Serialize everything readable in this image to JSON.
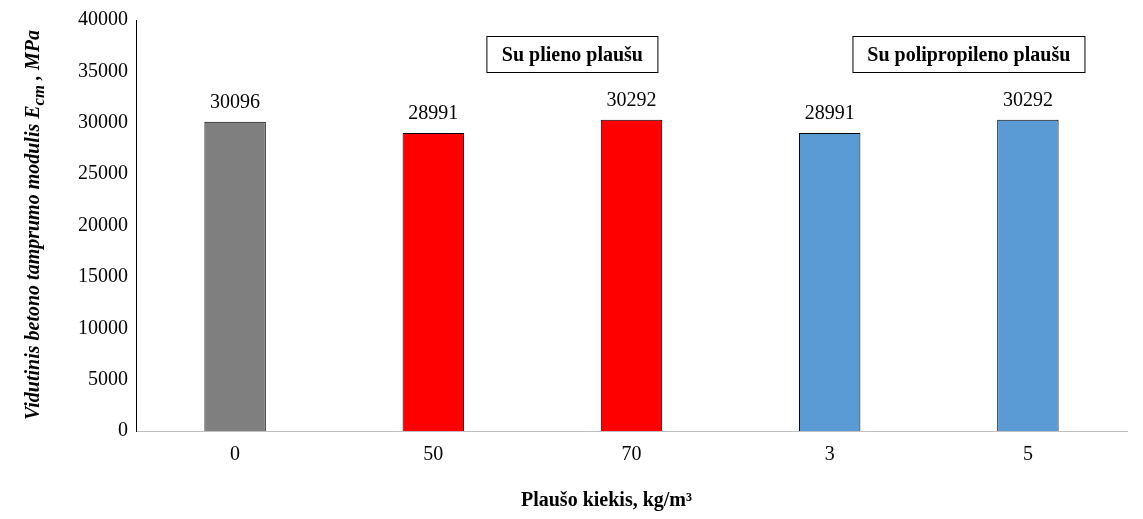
{
  "chart_data": {
    "type": "bar",
    "xlabel": "Plaušo kiekis, kg/m³",
    "ylabel": "Vidutinis betono tamprumo modulis E$_{cm}$ , MPa",
    "categories": [
      "0",
      "50",
      "70",
      "3",
      "5"
    ],
    "values": [
      30096,
      28991,
      30292,
      28991,
      30292
    ],
    "colors": [
      "#7f7f7f",
      "#ff0000",
      "#ff0000",
      "#5b9bd5",
      "#5b9bd5"
    ],
    "ylim": [
      0,
      40000
    ],
    "yticks": [
      0,
      5000,
      10000,
      15000,
      20000,
      25000,
      30000,
      35000,
      40000
    ],
    "grid": false,
    "legend": false,
    "data_labels": true,
    "annotations": [
      "Su plieno plaušu",
      "Su polipropileno plaušu"
    ]
  }
}
